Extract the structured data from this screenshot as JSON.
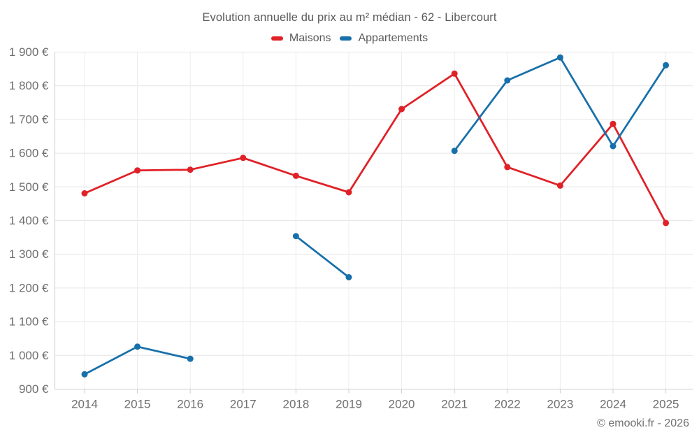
{
  "page": {
    "background": "#ffffff",
    "footer": "© emooki.fr - 2026"
  },
  "chart_data": {
    "type": "line",
    "title": "Evolution annuelle du prix au m² médian - 62 - Libercourt",
    "x": [
      2014,
      2015,
      2016,
      2017,
      2018,
      2019,
      2020,
      2021,
      2022,
      2023,
      2024,
      2025
    ],
    "series": [
      {
        "name": "Maisons",
        "color": "#e02127",
        "values": [
          1481,
          1549,
          1551,
          1586,
          1533,
          1484,
          1731,
          1836,
          1559,
          1504,
          1687,
          1393
        ]
      },
      {
        "name": "Appartements",
        "color": "#1770aa",
        "values": [
          944,
          1026,
          990,
          null,
          1354,
          1232,
          null,
          1607,
          1816,
          1884,
          1621,
          1861
        ]
      }
    ],
    "ylim": [
      900,
      1900
    ],
    "ytick_step": 100,
    "ytick_suffix": "€",
    "grid": true,
    "legend_position": "top",
    "marker_radius": 4.5,
    "line_width": 2.75,
    "colors": {
      "grid": "#e6e6e6",
      "vgrid": "#ececec",
      "axis": "#cccccc",
      "title_text": "#595a5c",
      "axis_text": "#6f6f6f"
    }
  }
}
